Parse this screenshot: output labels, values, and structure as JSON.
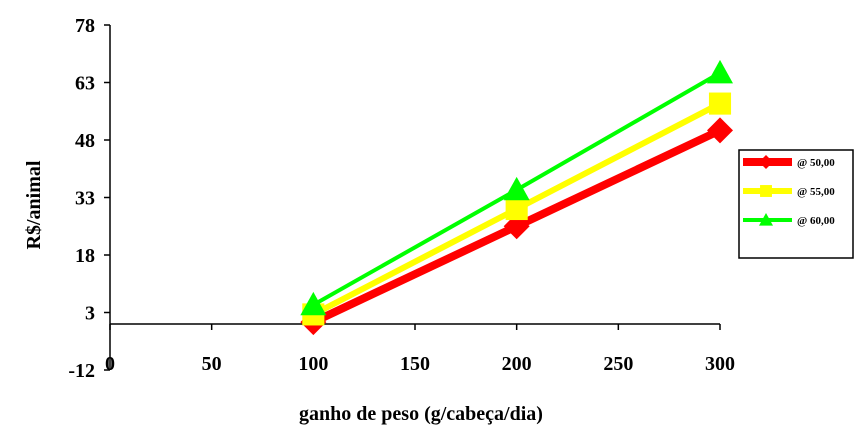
{
  "chart_data": {
    "type": "line",
    "xlabel": "ganho de peso (g/cabeça/dia)",
    "ylabel": "R$/animal",
    "x_ticks": [
      "0",
      "50",
      "100",
      "150",
      "200",
      "250",
      "300"
    ],
    "y_ticks": [
      "-12",
      "3",
      "18",
      "33",
      "48",
      "63",
      "78"
    ],
    "xlim": [
      0,
      300
    ],
    "ylim": [
      -12,
      78
    ],
    "grid": false,
    "legend_position": "right",
    "x": [
      100,
      200,
      300
    ],
    "series": [
      {
        "name": "@ 50,00",
        "values": [
          0.5,
          25.5,
          50.5
        ],
        "color": "#ff0000",
        "marker": "diamond"
      },
      {
        "name": "@ 55,00",
        "values": [
          2.5,
          30,
          57.5
        ],
        "color": "#ffff00",
        "marker": "square"
      },
      {
        "name": "@ 60,00",
        "values": [
          5,
          35,
          65.5
        ],
        "color": "#00ff00",
        "marker": "triangle"
      }
    ]
  }
}
